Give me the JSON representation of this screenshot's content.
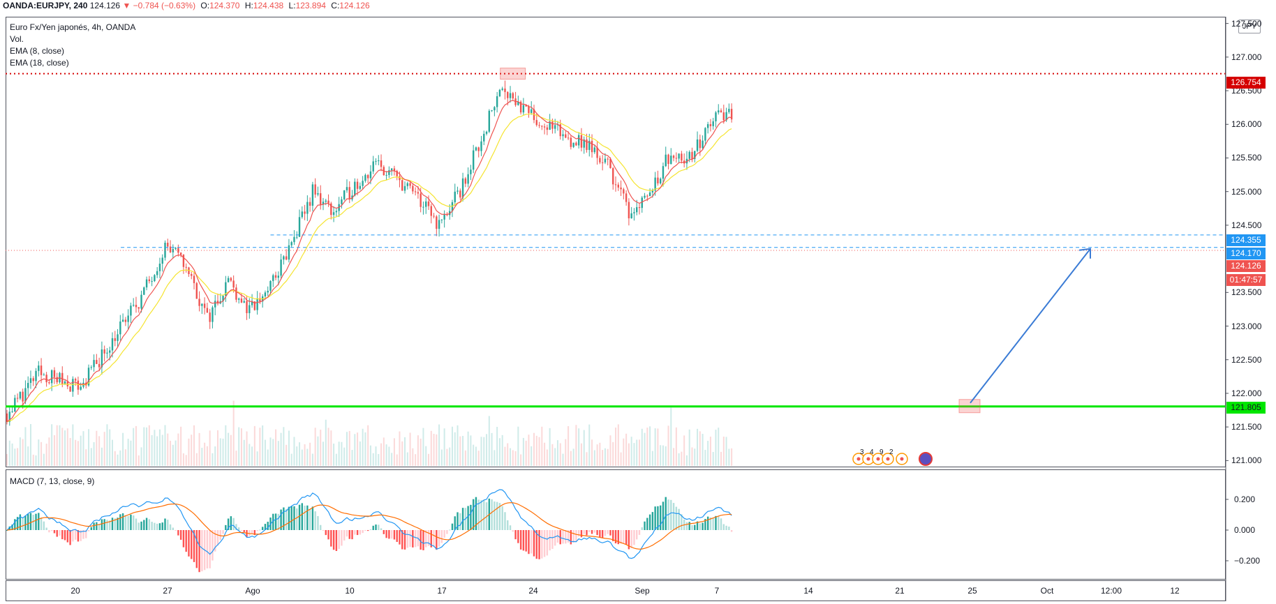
{
  "header": {
    "symbol": "OANDA:EURJPY, 240",
    "price": "124.126",
    "change": "▼ −0.784 (−0.63%)",
    "o_label": "O:",
    "o_value": "124.370",
    "h_label": "H:",
    "h_value": "124.438",
    "l_label": "L:",
    "l_value": "123.894",
    "c_label": "C:",
    "c_value": "124.126"
  },
  "legend": {
    "title": "Euro Fx/Yen japonés, 4h, OANDA",
    "vol": "Vol.",
    "ema_fast": "EMA (8, close)",
    "ema_slow": "EMA (18, close)",
    "macd": "MACD (7, 13, close, 9)"
  },
  "currency": "JPY",
  "price_axis": {
    "ticks": [
      "127.500",
      "127.000",
      "126.500",
      "126.000",
      "125.500",
      "125.000",
      "124.500",
      "123.500",
      "123.000",
      "122.500",
      "122.000",
      "121.500",
      "121.000"
    ]
  },
  "tags": {
    "resistance": "126.754",
    "upper_dashed": "124.355",
    "lower_dashed": "124.170",
    "last_price": "124.126",
    "countdown": "01:47:57",
    "support": "121.805"
  },
  "macd_axis": {
    "ticks": [
      "0.200",
      "0.000",
      "−0.200"
    ]
  },
  "date_axis": {
    "labels": [
      "20",
      "27",
      "Ago",
      "10",
      "17",
      "24",
      "Sep",
      "7",
      "14",
      "21",
      "25",
      "Oct",
      "12:00",
      "12"
    ]
  },
  "event_markers": [
    "3",
    "4",
    "9",
    "2"
  ],
  "colors": {
    "up": "#26a69a",
    "down": "#ef5350",
    "ema_fast": "#ef5350",
    "ema_slow": "#f5e430",
    "macd_line": "#2196f3",
    "signal_line": "#ff6d00",
    "support": "#00e600",
    "resistance": "#d50000",
    "dashed": "#2196f3",
    "arrow": "#3a7bd5"
  },
  "chart_data": {
    "type": "candlestick",
    "symbol": "OANDA:EURJPY",
    "interval": "4h",
    "ylim": [
      120.9,
      127.6
    ],
    "x_range": [
      "Jul 16",
      "Oct 14"
    ],
    "last": 124.126,
    "levels": {
      "resistance": 126.754,
      "support": 121.805,
      "zone_top": 124.355,
      "zone_bottom": 124.17
    },
    "projection": {
      "from": [
        "Sep 24",
        121.805
      ],
      "to": [
        "Oct 11",
        124.17
      ]
    },
    "path": [
      [
        0,
        121.7
      ],
      [
        3,
        122.3
      ],
      [
        7,
        122.1
      ],
      [
        10,
        122.8
      ],
      [
        13,
        123.5
      ],
      [
        15,
        124.2
      ],
      [
        17,
        123.9
      ],
      [
        19,
        123.1
      ],
      [
        21,
        123.7
      ],
      [
        23,
        123.2
      ],
      [
        25,
        123.6
      ],
      [
        27,
        124.2
      ],
      [
        29,
        125.0
      ],
      [
        31,
        124.7
      ],
      [
        33,
        125.1
      ],
      [
        35,
        125.4
      ],
      [
        37,
        125.2
      ],
      [
        39,
        124.9
      ],
      [
        41,
        124.5
      ],
      [
        43,
        125.0
      ],
      [
        45,
        125.8
      ],
      [
        47,
        126.6
      ],
      [
        49,
        126.2
      ],
      [
        51,
        126.0
      ],
      [
        53,
        125.8
      ],
      [
        55,
        125.7
      ],
      [
        57,
        125.4
      ],
      [
        59,
        124.7
      ],
      [
        61,
        125.0
      ],
      [
        63,
        125.6
      ],
      [
        65,
        125.5
      ],
      [
        67,
        126.1
      ],
      [
        69,
        126.2
      ],
      [
        71,
        126.5
      ],
      [
        72,
        126.9
      ],
      [
        73,
        126.4
      ],
      [
        75,
        125.9
      ],
      [
        77,
        125.8
      ],
      [
        79,
        125.7
      ],
      [
        81,
        125.2
      ],
      [
        83,
        124.9
      ],
      [
        85,
        125.7
      ],
      [
        87,
        125.9
      ],
      [
        89,
        125.7
      ],
      [
        91,
        125.5
      ],
      [
        92,
        124.8
      ],
      [
        93,
        124.1
      ]
    ]
  }
}
